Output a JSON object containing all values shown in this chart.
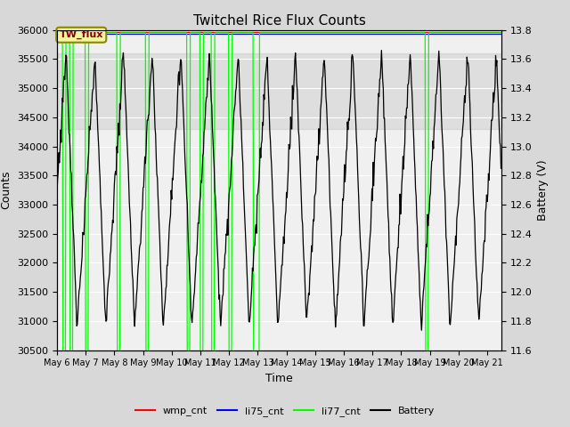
{
  "title": "Twitchel Rice Flux Counts",
  "xlabel": "Time",
  "ylabel_left": "Counts",
  "ylabel_right": "Battery (V)",
  "ylim_left": [
    30500,
    36000
  ],
  "ylim_right": [
    11.6,
    13.8
  ],
  "xlim": [
    0,
    15.5
  ],
  "x_tick_labels": [
    "May 6",
    "May 7",
    "May 8",
    "May 9",
    "May 10",
    "May 11",
    "May 12",
    "May 13",
    "May 14",
    "May 15",
    "May 16",
    "May 17",
    "May 18",
    "May 19",
    "May 20",
    "May 21"
  ],
  "x_tick_positions": [
    0,
    1,
    2,
    3,
    4,
    5,
    6,
    7,
    8,
    9,
    10,
    11,
    12,
    13,
    14,
    15
  ],
  "bg_color": "#d8d8d8",
  "plot_bg_color": "#f0f0f0",
  "grid_color": "white",
  "li77_color": "#00ff00",
  "battery_color": "black",
  "wmp_color": "red",
  "li75_color": "blue",
  "annotation_text": "TW_flux",
  "legend_items": [
    "wmp_cnt",
    "li75_cnt",
    "li77_cnt",
    "Battery"
  ],
  "legend_colors": [
    "red",
    "blue",
    "#00ff00",
    "black"
  ],
  "shaded_band": [
    34300,
    35600
  ],
  "yticks_left": [
    30500,
    31000,
    31500,
    32000,
    32500,
    33000,
    33500,
    34000,
    34500,
    35000,
    35500,
    36000
  ],
  "yticks_right": [
    11.6,
    11.8,
    12.0,
    12.2,
    12.4,
    12.6,
    12.8,
    13.0,
    13.2,
    13.4,
    13.6,
    13.8
  ]
}
